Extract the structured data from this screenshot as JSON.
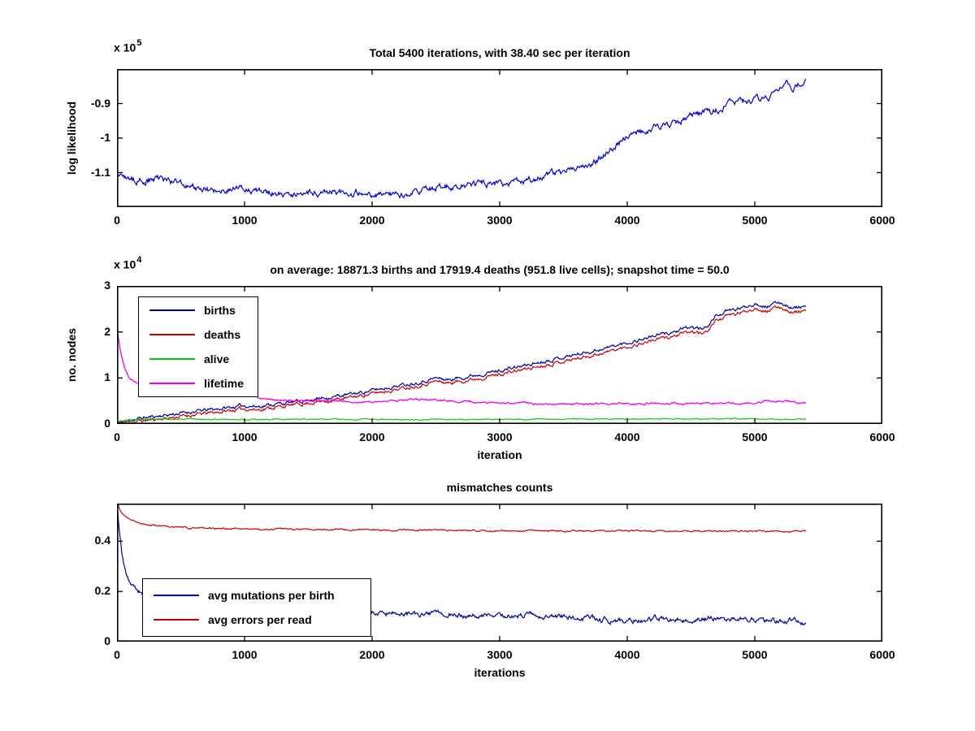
{
  "figure": {
    "background": "#ffffff",
    "axes_color": "#000000"
  },
  "chart_data": [
    {
      "type": "line",
      "title": "Total 5400 iterations, with 38.40 sec per iteration",
      "xlabel": "",
      "ylabel": "log likelihood",
      "y_multiplier": {
        "base": "x 10",
        "exp": "5"
      },
      "xlim": [
        0,
        6000
      ],
      "ylim": [
        -1.2,
        -0.8
      ],
      "xticks": [
        0,
        1000,
        2000,
        3000,
        4000,
        5000,
        6000
      ],
      "yticks": [
        -1.1,
        -1,
        -0.9
      ],
      "grid": false,
      "legend": null,
      "series": [
        {
          "name": "log likelihood",
          "color": "#0000cc",
          "width": 1.2,
          "noise": 0.009,
          "seed": 2,
          "points": [
            [
              0,
              -1.105
            ],
            [
              100,
              -1.118
            ],
            [
              200,
              -1.125
            ],
            [
              300,
              -1.118
            ],
            [
              400,
              -1.126
            ],
            [
              500,
              -1.132
            ],
            [
              600,
              -1.142
            ],
            [
              700,
              -1.15
            ],
            [
              800,
              -1.154
            ],
            [
              900,
              -1.15
            ],
            [
              1000,
              -1.148
            ],
            [
              1100,
              -1.152
            ],
            [
              1200,
              -1.156
            ],
            [
              1300,
              -1.161
            ],
            [
              1400,
              -1.162
            ],
            [
              1500,
              -1.158
            ],
            [
              1600,
              -1.155
            ],
            [
              1700,
              -1.156
            ],
            [
              1800,
              -1.16
            ],
            [
              1900,
              -1.156
            ],
            [
              2000,
              -1.164
            ],
            [
              2100,
              -1.16
            ],
            [
              2200,
              -1.166
            ],
            [
              2300,
              -1.159
            ],
            [
              2400,
              -1.153
            ],
            [
              2500,
              -1.145
            ],
            [
              2600,
              -1.139
            ],
            [
              2700,
              -1.138
            ],
            [
              2800,
              -1.134
            ],
            [
              2900,
              -1.131
            ],
            [
              3000,
              -1.127
            ],
            [
              3100,
              -1.13
            ],
            [
              3200,
              -1.124
            ],
            [
              3300,
              -1.115
            ],
            [
              3400,
              -1.104
            ],
            [
              3500,
              -1.099
            ],
            [
              3600,
              -1.085
            ],
            [
              3700,
              -1.08
            ],
            [
              3800,
              -1.052
            ],
            [
              3900,
              -1.028
            ],
            [
              4000,
              -0.995
            ],
            [
              4100,
              -0.981
            ],
            [
              4200,
              -0.972
            ],
            [
              4300,
              -0.964
            ],
            [
              4400,
              -0.954
            ],
            [
              4500,
              -0.936
            ],
            [
              4600,
              -0.93
            ],
            [
              4700,
              -0.918
            ],
            [
              4800,
              -0.904
            ],
            [
              4900,
              -0.898
            ],
            [
              5000,
              -0.888
            ],
            [
              5100,
              -0.884
            ],
            [
              5200,
              -0.862
            ],
            [
              5250,
              -0.848
            ],
            [
              5300,
              -0.858
            ],
            [
              5350,
              -0.838
            ],
            [
              5400,
              -0.828
            ]
          ]
        }
      ]
    },
    {
      "type": "line",
      "title": "on average: 18871.3 births and 17919.4 deaths (951.8 live cells); snapshot time = 50.0",
      "xlabel": "iteration",
      "ylabel": "no. nodes",
      "y_multiplier": {
        "base": "x 10",
        "exp": "4"
      },
      "xlim": [
        0,
        6000
      ],
      "ylim": [
        0,
        3
      ],
      "xticks": [
        0,
        1000,
        2000,
        3000,
        4000,
        5000,
        6000
      ],
      "yticks": [
        0,
        1,
        2,
        3
      ],
      "grid": false,
      "legend": {
        "position": "top-left",
        "items": [
          {
            "label": "births",
            "color": "#000099"
          },
          {
            "label": "deaths",
            "color": "#cc0000"
          },
          {
            "label": "alive",
            "color": "#00cc00"
          },
          {
            "label": "lifetime",
            "color": "#ee00ee"
          }
        ]
      },
      "series": [
        {
          "name": "births",
          "color": "#000099",
          "width": 1.2,
          "noise": 0.035,
          "seed": 11,
          "points": [
            [
              0,
              0.03
            ],
            [
              200,
              0.13
            ],
            [
              400,
              0.2
            ],
            [
              600,
              0.27
            ],
            [
              800,
              0.33
            ],
            [
              1000,
              0.4
            ],
            [
              1100,
              0.38
            ],
            [
              1200,
              0.42
            ],
            [
              1400,
              0.48
            ],
            [
              1600,
              0.56
            ],
            [
              1800,
              0.63
            ],
            [
              2000,
              0.73
            ],
            [
              2200,
              0.83
            ],
            [
              2400,
              0.93
            ],
            [
              2500,
              1.0
            ],
            [
              2600,
              0.96
            ],
            [
              2800,
              1.06
            ],
            [
              3000,
              1.16
            ],
            [
              3200,
              1.27
            ],
            [
              3400,
              1.4
            ],
            [
              3600,
              1.51
            ],
            [
              3800,
              1.63
            ],
            [
              4000,
              1.76
            ],
            [
              4200,
              1.91
            ],
            [
              4400,
              2.02
            ],
            [
              4500,
              2.1
            ],
            [
              4600,
              2.06
            ],
            [
              4650,
              2.2
            ],
            [
              4700,
              2.36
            ],
            [
              4800,
              2.46
            ],
            [
              4900,
              2.52
            ],
            [
              5000,
              2.62
            ],
            [
              5100,
              2.56
            ],
            [
              5200,
              2.64
            ],
            [
              5300,
              2.52
            ],
            [
              5400,
              2.56
            ]
          ]
        },
        {
          "name": "deaths",
          "color": "#cc0000",
          "width": 1.2,
          "noise": 0.035,
          "seed": 11,
          "points": [
            [
              0,
              0.01
            ],
            [
              200,
              0.07
            ],
            [
              400,
              0.13
            ],
            [
              600,
              0.2
            ],
            [
              800,
              0.26
            ],
            [
              1000,
              0.33
            ],
            [
              1100,
              0.31
            ],
            [
              1200,
              0.35
            ],
            [
              1400,
              0.42
            ],
            [
              1600,
              0.49
            ],
            [
              1800,
              0.56
            ],
            [
              2000,
              0.66
            ],
            [
              2200,
              0.76
            ],
            [
              2400,
              0.86
            ],
            [
              2500,
              0.93
            ],
            [
              2600,
              0.89
            ],
            [
              2800,
              0.98
            ],
            [
              3000,
              1.08
            ],
            [
              3200,
              1.19
            ],
            [
              3400,
              1.31
            ],
            [
              3600,
              1.42
            ],
            [
              3800,
              1.54
            ],
            [
              4000,
              1.67
            ],
            [
              4200,
              1.82
            ],
            [
              4400,
              1.93
            ],
            [
              4500,
              2.0
            ],
            [
              4600,
              1.96
            ],
            [
              4650,
              2.1
            ],
            [
              4700,
              2.26
            ],
            [
              4800,
              2.36
            ],
            [
              4900,
              2.42
            ],
            [
              5000,
              2.52
            ],
            [
              5100,
              2.46
            ],
            [
              5200,
              2.54
            ],
            [
              5300,
              2.42
            ],
            [
              5400,
              2.47
            ]
          ]
        },
        {
          "name": "alive",
          "color": "#00cc00",
          "width": 1.2,
          "noise": 0.01,
          "seed": 3,
          "points": [
            [
              0,
              0.05
            ],
            [
              80,
              0.09
            ],
            [
              200,
              0.1
            ],
            [
              1000,
              0.1
            ],
            [
              2000,
              0.1
            ],
            [
              3000,
              0.1
            ],
            [
              4000,
              0.11
            ],
            [
              5400,
              0.11
            ]
          ]
        },
        {
          "name": "lifetime",
          "color": "#ee00ee",
          "width": 1.3,
          "noise": 0.02,
          "seed": 5,
          "points": [
            [
              0,
              2.05
            ],
            [
              30,
              1.55
            ],
            [
              60,
              1.2
            ],
            [
              100,
              0.98
            ],
            [
              150,
              0.91
            ],
            [
              250,
              0.86
            ],
            [
              400,
              0.8
            ],
            [
              600,
              0.76
            ],
            [
              800,
              0.71
            ],
            [
              1000,
              0.64
            ],
            [
              1060,
              0.6
            ],
            [
              1150,
              0.56
            ],
            [
              1250,
              0.53
            ],
            [
              1400,
              0.5
            ],
            [
              1550,
              0.52
            ],
            [
              1700,
              0.5
            ],
            [
              1900,
              0.47
            ],
            [
              2100,
              0.5
            ],
            [
              2300,
              0.53
            ],
            [
              2500,
              0.52
            ],
            [
              2700,
              0.49
            ],
            [
              2900,
              0.46
            ],
            [
              3100,
              0.45
            ],
            [
              3300,
              0.44
            ],
            [
              3600,
              0.44
            ],
            [
              3900,
              0.44
            ],
            [
              4200,
              0.45
            ],
            [
              4500,
              0.44
            ],
            [
              4800,
              0.45
            ],
            [
              5000,
              0.47
            ],
            [
              5200,
              0.5
            ],
            [
              5400,
              0.46
            ]
          ]
        }
      ]
    },
    {
      "type": "line",
      "title": "mismatches counts",
      "xlabel": "iterations",
      "ylabel": "",
      "y_multiplier": null,
      "xlim": [
        0,
        6000
      ],
      "ylim": [
        0,
        0.55
      ],
      "xticks": [
        0,
        1000,
        2000,
        3000,
        4000,
        5000,
        6000
      ],
      "yticks": [
        0,
        0.2,
        0.4
      ],
      "grid": false,
      "legend": {
        "position": "bottom-left",
        "items": [
          {
            "label": "avg mutations per birth",
            "color": "#000099"
          },
          {
            "label": "avg errors per read",
            "color": "#cc0000"
          }
        ]
      },
      "series": [
        {
          "name": "avg mutations per birth",
          "color": "#000099",
          "width": 1.2,
          "noise": 0.01,
          "seed": 9,
          "points": [
            [
              0,
              0.55
            ],
            [
              20,
              0.43
            ],
            [
              40,
              0.34
            ],
            [
              70,
              0.27
            ],
            [
              100,
              0.23
            ],
            [
              150,
              0.205
            ],
            [
              200,
              0.196
            ],
            [
              300,
              0.182
            ],
            [
              400,
              0.172
            ],
            [
              600,
              0.161
            ],
            [
              800,
              0.152
            ],
            [
              1000,
              0.146
            ],
            [
              1200,
              0.141
            ],
            [
              1400,
              0.136
            ],
            [
              1600,
              0.131
            ],
            [
              1800,
              0.126
            ],
            [
              1900,
              0.121
            ],
            [
              2000,
              0.116
            ],
            [
              2200,
              0.111
            ],
            [
              2400,
              0.109
            ],
            [
              2600,
              0.106
            ],
            [
              2800,
              0.104
            ],
            [
              3000,
              0.101
            ],
            [
              3200,
              0.106
            ],
            [
              3400,
              0.101
            ],
            [
              3600,
              0.096
            ],
            [
              3800,
              0.086
            ],
            [
              4000,
              0.083
            ],
            [
              4200,
              0.091
            ],
            [
              4400,
              0.089
            ],
            [
              4600,
              0.091
            ],
            [
              4800,
              0.093
            ],
            [
              5000,
              0.091
            ],
            [
              5100,
              0.083
            ],
            [
              5200,
              0.081
            ],
            [
              5300,
              0.086
            ],
            [
              5400,
              0.076
            ]
          ]
        },
        {
          "name": "avg errors per read",
          "color": "#cc0000",
          "width": 1.2,
          "noise": 0.003,
          "seed": 4,
          "points": [
            [
              0,
              0.555
            ],
            [
              30,
              0.52
            ],
            [
              60,
              0.5
            ],
            [
              100,
              0.485
            ],
            [
              150,
              0.475
            ],
            [
              250,
              0.465
            ],
            [
              400,
              0.458
            ],
            [
              600,
              0.452
            ],
            [
              900,
              0.449
            ],
            [
              1300,
              0.447
            ],
            [
              1800,
              0.445
            ],
            [
              2400,
              0.444
            ],
            [
              3000,
              0.442
            ],
            [
              4000,
              0.441
            ],
            [
              5400,
              0.44
            ]
          ]
        }
      ]
    }
  ]
}
